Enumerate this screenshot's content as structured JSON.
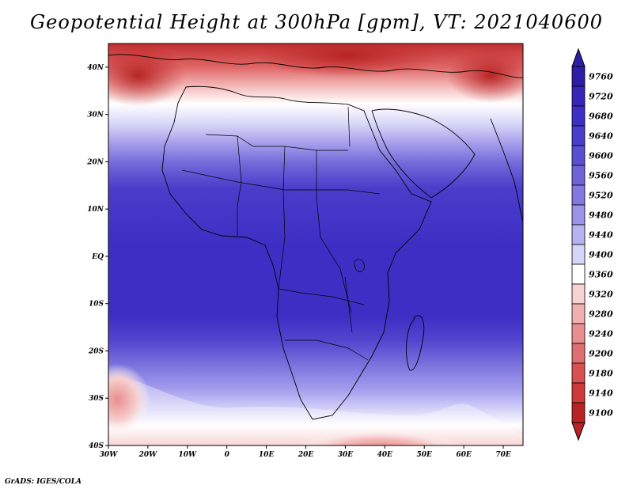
{
  "title": "Geopotential Height at 300hPa [gpm], VT: 2021040600",
  "credit": "GrADS: IGES/COLA",
  "map": {
    "lon_labels": [
      "30W",
      "20W",
      "10W",
      "0",
      "10E",
      "20E",
      "30E",
      "40E",
      "50E",
      "60E",
      "70E"
    ],
    "lat_labels": [
      "40N",
      "30N",
      "20N",
      "10N",
      "EQ",
      "10S",
      "20S",
      "30S",
      "40S"
    ],
    "lon_range": [
      -30,
      75
    ],
    "lat_range": [
      -40,
      45
    ]
  },
  "colorbar": {
    "labels": [
      "9760",
      "9720",
      "9680",
      "9640",
      "9600",
      "9560",
      "9520",
      "9480",
      "9440",
      "9400",
      "9360",
      "9320",
      "9280",
      "9240",
      "9200",
      "9180",
      "9140",
      "9100"
    ],
    "colors": [
      "#2c1fa6",
      "#3526b8",
      "#3e2fc4",
      "#4a3dca",
      "#5a4fd0",
      "#6e64d8",
      "#8378e0",
      "#9b93e8",
      "#b7b2f0",
      "#d6d4f7",
      "#ffffff",
      "#f8d2d2",
      "#f0b0b0",
      "#e88e8e",
      "#e06e6e",
      "#d85050",
      "#cc3a3a",
      "#b82424"
    ]
  }
}
